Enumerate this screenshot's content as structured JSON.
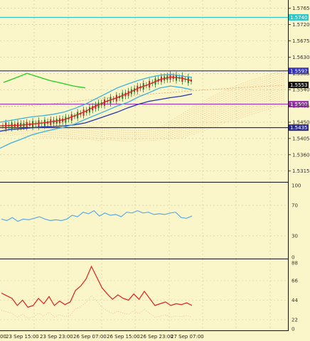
{
  "chart_data": [
    {
      "type": "line",
      "panel": "price",
      "ylim": [
        1.5285,
        1.5788
      ],
      "y_ticks": [
        "1.5765",
        "1.5720",
        "1.5675",
        "1.5630",
        "1.5585",
        "1.5540",
        "1.5495",
        "1.5450",
        "1.5405",
        "1.5360",
        "1.5315"
      ],
      "levels": [
        {
          "value": 1.574,
          "label": "1.5740",
          "color": "#2ec7c7"
        },
        {
          "value": 1.5592,
          "label": "1.5592",
          "color": "#3333bb"
        },
        {
          "value": 1.55,
          "label": "1.5500",
          "color": "#9933aa"
        },
        {
          "value": 1.5435,
          "label": "1.5435",
          "color": "#2a2a88"
        }
      ],
      "last_price": {
        "value": 1.5553,
        "label": "1.5553"
      },
      "series": [
        {
          "values": [
            1.544,
            1.5441,
            1.5442,
            1.5445,
            1.5448,
            1.5452,
            1.5457,
            1.5468,
            1.548,
            1.5495,
            1.5508,
            1.5518,
            1.553,
            1.5545,
            1.5555,
            1.5568,
            1.5575,
            1.5572,
            1.5565
          ],
          "color": "#dd2020"
        },
        {
          "values": [
            1.5425,
            1.543,
            1.5432,
            1.5435,
            1.5437,
            1.5438,
            1.544,
            1.5443,
            1.5448,
            1.5458,
            1.5468,
            1.5478,
            1.549,
            1.55,
            1.5508,
            1.5513,
            1.5518,
            1.5522,
            1.5528
          ],
          "color": "#2233bb"
        },
        {
          "values": [
            1.5378,
            1.5392,
            1.5403,
            1.5415,
            1.5423,
            1.543,
            1.5436,
            1.5445,
            1.5458,
            1.547,
            1.5482,
            1.5495,
            1.5505,
            1.552,
            1.5532,
            1.5545,
            1.555,
            1.5546,
            1.554
          ],
          "color": "#3bb0e0"
        },
        {
          "values": [
            1.545,
            1.5455,
            1.546,
            1.5465,
            1.5468,
            1.5472,
            1.5478,
            1.5488,
            1.55,
            1.5515,
            1.553,
            1.5545,
            1.5556,
            1.5566,
            1.5574,
            1.558,
            1.5582,
            1.5578,
            1.5574
          ],
          "color": "#3bb0e0"
        },
        {
          "values": [
            1.556,
            1.5572,
            1.5585,
            1.5575,
            1.5565,
            1.5558,
            1.555,
            1.5545
          ],
          "color": "#22cc22"
        }
      ]
    },
    {
      "type": "line",
      "panel": "oscillator-1",
      "ylim": [
        0,
        100
      ],
      "y_ticks": [
        "100",
        "70",
        "30",
        "0"
      ],
      "values": [
        52,
        50,
        54,
        49,
        52,
        51,
        53,
        55,
        52,
        50,
        51,
        50,
        52,
        57,
        55,
        61,
        59,
        63,
        56,
        60,
        57,
        58,
        55,
        61,
        60,
        63,
        60,
        61,
        58,
        59,
        58,
        60,
        61,
        54,
        53,
        56
      ],
      "color": "#59a9e6"
    },
    {
      "type": "line",
      "panel": "oscillator-2",
      "ylim": [
        10,
        90
      ],
      "y_ticks": [
        "88",
        "66",
        "44",
        "22",
        "0"
      ],
      "values": [
        52,
        49,
        46,
        38,
        44,
        36,
        38,
        46,
        40,
        48,
        38,
        43,
        39,
        42,
        55,
        60,
        68,
        82,
        70,
        58,
        51,
        45,
        50,
        46,
        44,
        51,
        45,
        54,
        46,
        38,
        40,
        42,
        38,
        40,
        39,
        41,
        38
      ],
      "color": "#dd2020"
    }
  ],
  "x_labels": [
    "00",
    "23 Sep 15:00",
    "23 Sep 23:00",
    "26 Sep 07:00",
    "26 Sep 15:00",
    "26 Sep 23:00",
    "27 Sep 07:00"
  ]
}
